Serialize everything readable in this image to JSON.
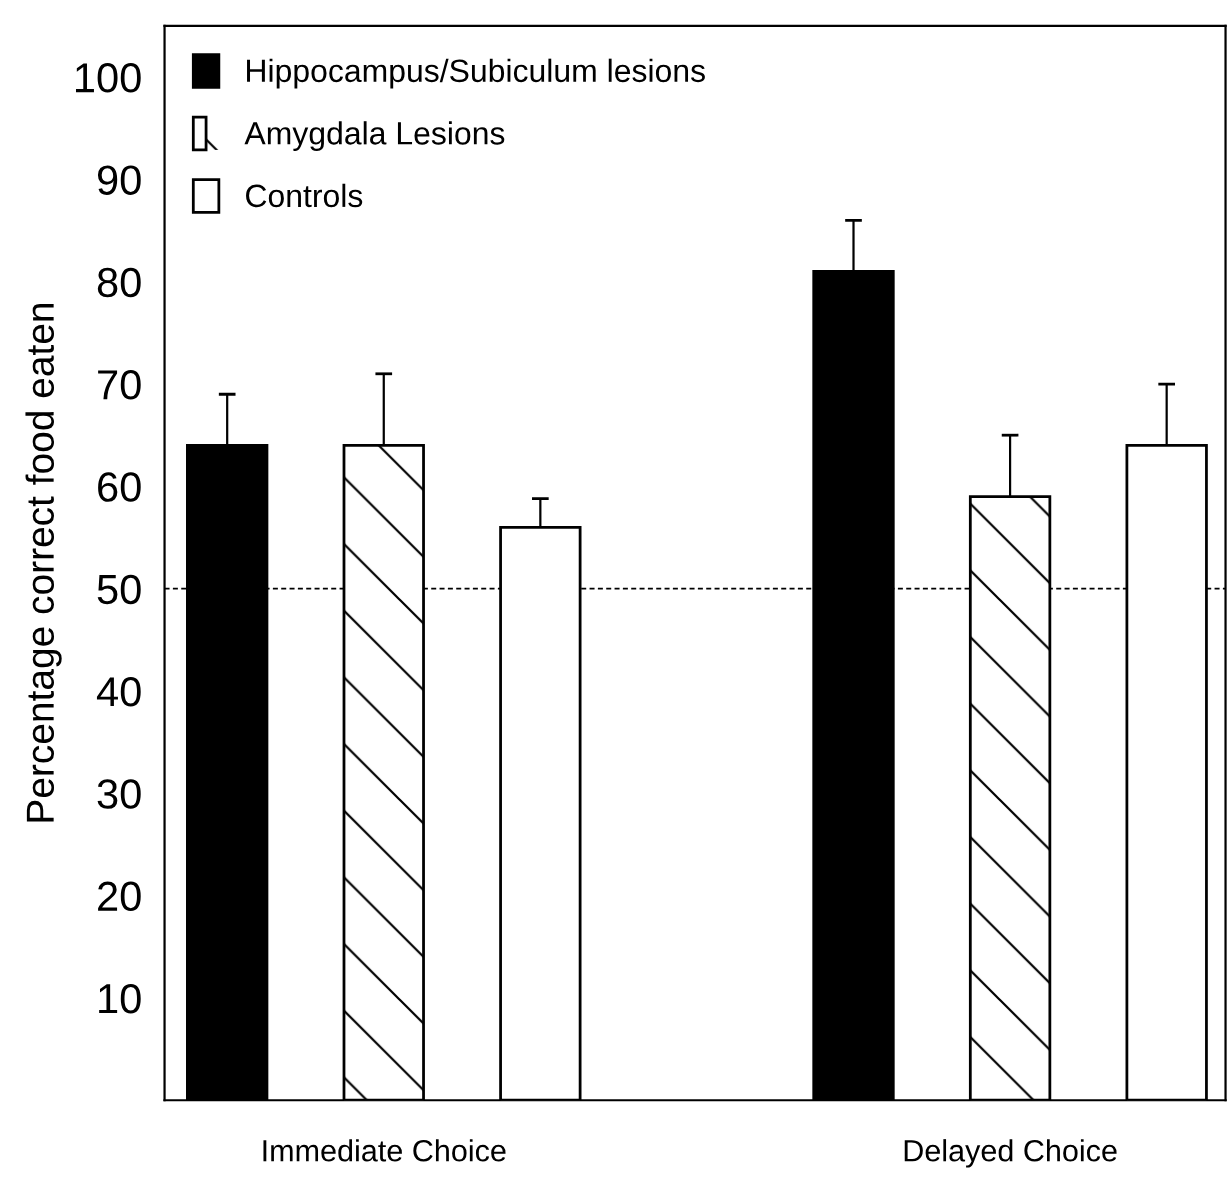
{
  "chart_data": {
    "type": "bar",
    "ylabel": "Percentage correct food eaten",
    "categories": [
      "Immediate Choice",
      "Delayed Choice"
    ],
    "series": [
      {
        "name": "Hippocampus/Subiculum lesions",
        "color": "#000000",
        "values": [
          64,
          81
        ],
        "errors": [
          5,
          5
        ]
      },
      {
        "name": "Amygdala Lesions",
        "color": "#ffffff",
        "values": [
          64,
          59
        ],
        "errors": [
          7,
          6
        ]
      },
      {
        "name": "Controls",
        "color": "#ffffff",
        "values": [
          56,
          64
        ],
        "errors": [
          2.8,
          6
        ]
      }
    ],
    "ylim": [
      0,
      105
    ],
    "yticks": [
      10,
      20,
      30,
      40,
      50,
      60,
      70,
      80,
      90,
      100
    ],
    "ref_lines": [
      {
        "axis": "y",
        "value": 50,
        "line_style": "dashed"
      }
    ],
    "legend": "top left",
    "grid": false
  }
}
